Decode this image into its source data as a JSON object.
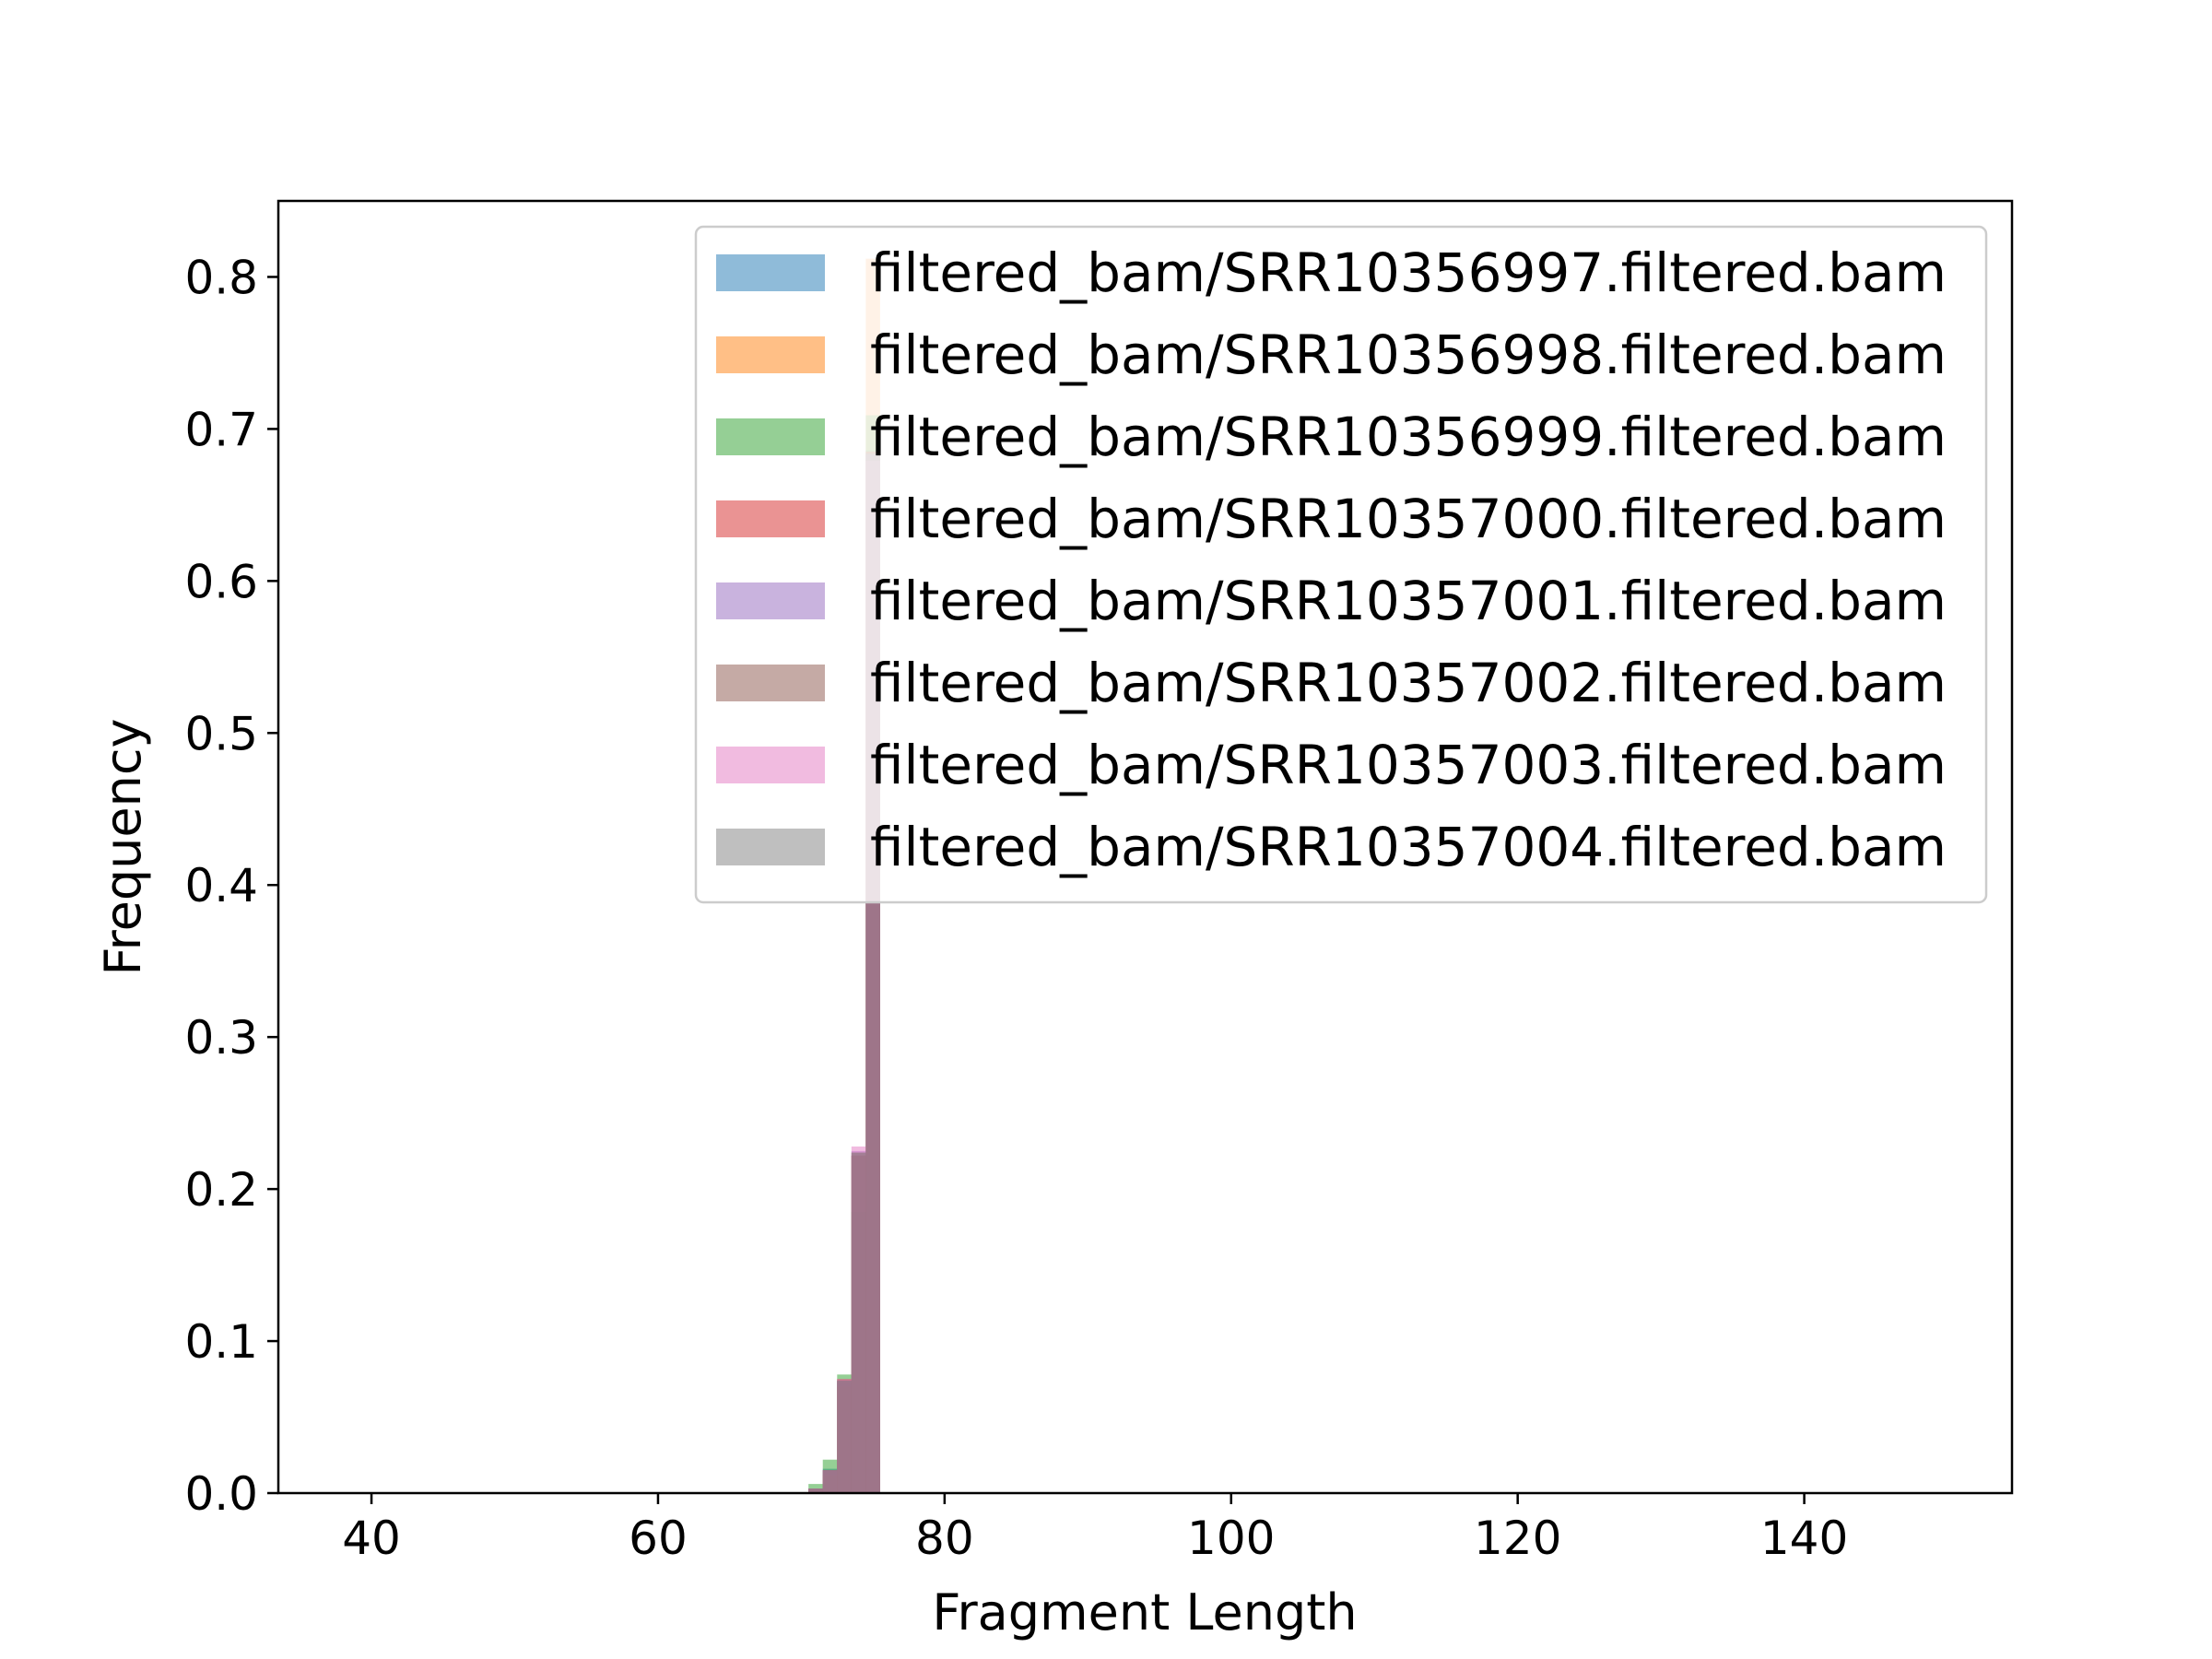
{
  "chart_data": {
    "type": "histogram",
    "title": "",
    "xlabel": "Fragment Length",
    "ylabel": "Frequency",
    "xlim": [
      33.5,
      154.5
    ],
    "ylim": [
      0,
      0.85
    ],
    "xticks": [
      40,
      60,
      80,
      100,
      120,
      140
    ],
    "yticks": [
      0.0,
      0.1,
      0.2,
      0.3,
      0.4,
      0.5,
      0.6,
      0.7,
      0.8
    ],
    "grid": false,
    "legend_position": "top-right",
    "bin_edges": [
      70.5,
      71.5,
      72.5,
      73.5,
      74.5,
      75.5
    ],
    "series": [
      {
        "name": "filtered_bam/SRR10356997.filtered.bam",
        "color": "#1f77b4",
        "values": [
          0.003,
          0.016,
          0.073,
          0.222,
          0.686
        ]
      },
      {
        "name": "filtered_bam/SRR10356998.filtered.bam",
        "color": "#ff7f0e",
        "values": [
          0.002,
          0.012,
          0.07,
          0.222,
          0.812
        ]
      },
      {
        "name": "filtered_bam/SRR10356999.filtered.bam",
        "color": "#2ca02c",
        "values": [
          0.006,
          0.022,
          0.078,
          0.185,
          0.709
        ]
      },
      {
        "name": "filtered_bam/SRR10357000.filtered.bam",
        "color": "#d62728",
        "values": [
          0.003,
          0.015,
          0.075,
          0.222,
          0.685
        ]
      },
      {
        "name": "filtered_bam/SRR10357001.filtered.bam",
        "color": "#9467bd",
        "values": [
          0.003,
          0.015,
          0.074,
          0.225,
          0.683
        ]
      },
      {
        "name": "filtered_bam/SRR10357002.filtered.bam",
        "color": "#8c564b",
        "values": [
          0.003,
          0.015,
          0.074,
          0.224,
          0.684
        ]
      },
      {
        "name": "filtered_bam/SRR10357003.filtered.bam",
        "color": "#e377c2",
        "values": [
          0.003,
          0.015,
          0.075,
          0.228,
          0.679
        ]
      },
      {
        "name": "filtered_bam/SRR10357004.filtered.bam",
        "color": "#7f7f7f",
        "values": [
          0.003,
          0.015,
          0.074,
          0.224,
          0.684
        ]
      }
    ]
  }
}
